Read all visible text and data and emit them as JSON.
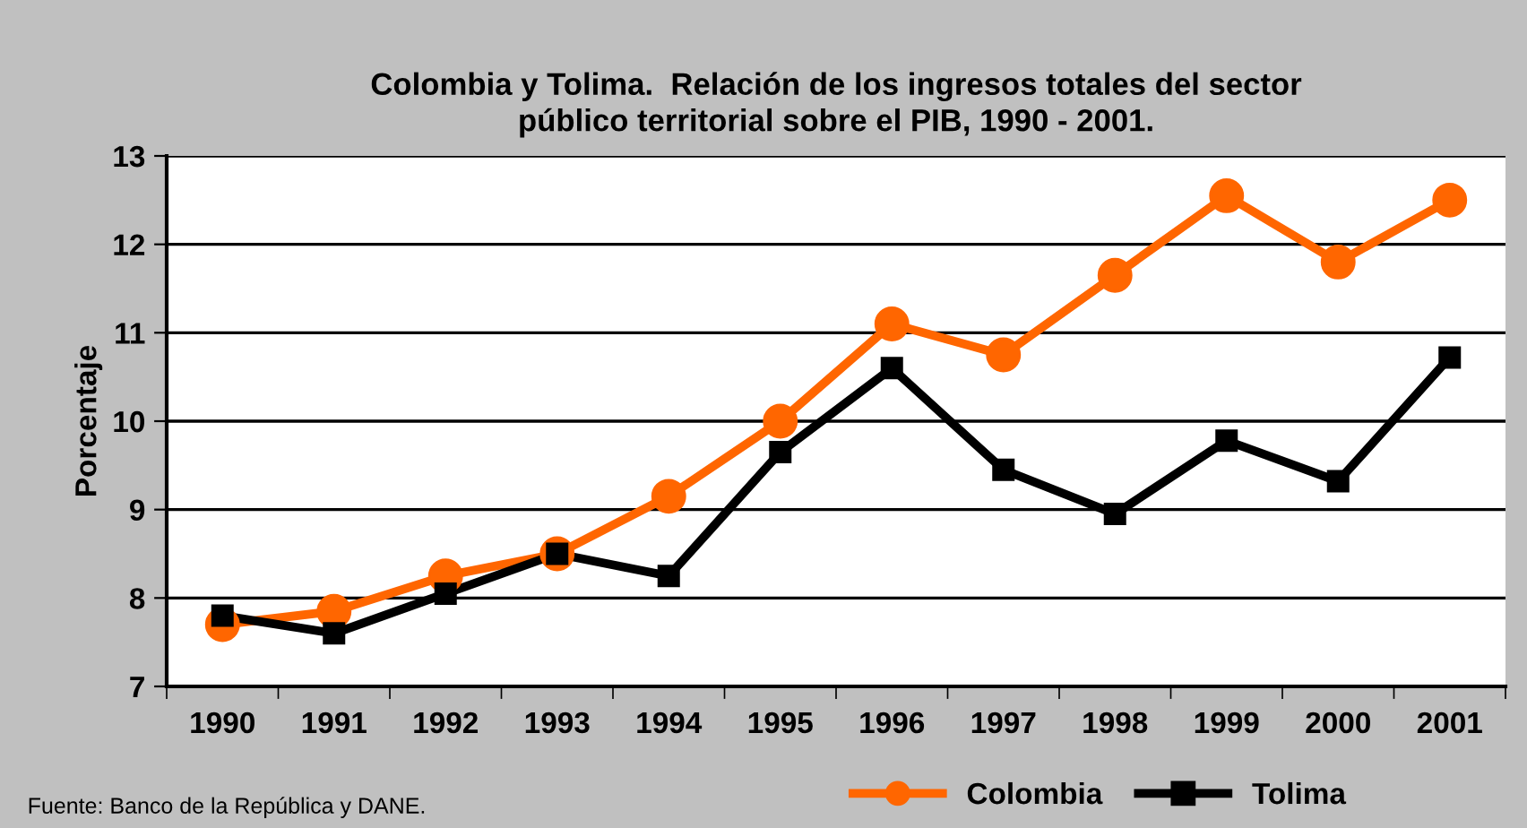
{
  "chart_data": {
    "type": "line",
    "title": "Colombia y Tolima.  Relación de los ingresos totales del sector\npúblico territorial sobre el PIB, 1990 - 2001.",
    "ylabel": "Porcentaje",
    "categories": [
      "1990",
      "1991",
      "1992",
      "1993",
      "1994",
      "1995",
      "1996",
      "1997",
      "1998",
      "1999",
      "2000",
      "2001"
    ],
    "series": [
      {
        "name": "Colombia",
        "color": "#ff6600",
        "marker": "circle",
        "values": [
          7.7,
          7.85,
          8.25,
          8.5,
          9.15,
          10.0,
          11.1,
          10.75,
          11.65,
          12.55,
          11.8,
          12.5
        ]
      },
      {
        "name": "Tolima",
        "color": "#000000",
        "marker": "square",
        "values": [
          7.8,
          7.6,
          8.05,
          8.5,
          8.25,
          9.65,
          10.6,
          9.45,
          8.95,
          9.78,
          9.32,
          10.72
        ]
      }
    ],
    "ylim": [
      7,
      13
    ],
    "yticks": [
      7,
      8,
      9,
      10,
      11,
      12,
      13
    ],
    "grid": "y",
    "legend": "bottom",
    "line_style": "solid",
    "annotations": [
      "Fuente: Banco de la República y DANE."
    ]
  }
}
